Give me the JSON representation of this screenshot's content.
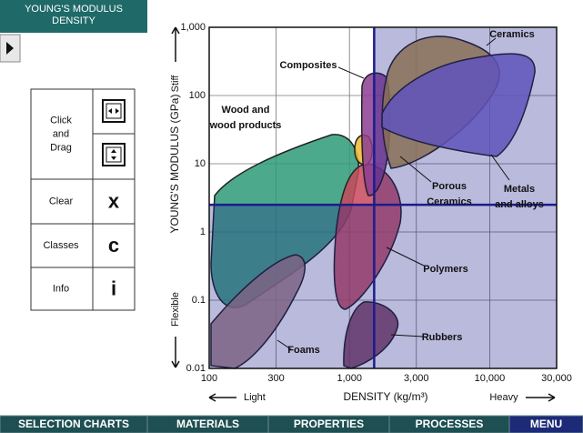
{
  "header": {
    "title": [
      "YOUNG'S MODULUS",
      "DENSITY"
    ]
  },
  "tools": [
    {
      "label": [
        "Click",
        "and",
        "Drag"
      ]
    },
    {
      "label": [
        "Clear"
      ],
      "icon": "x"
    },
    {
      "label": [
        "Classes"
      ],
      "icon": "c"
    },
    {
      "label": [
        "Info"
      ],
      "icon": "i"
    }
  ],
  "chart_data": {
    "type": "selection-chart",
    "x_label": "DENSITY (kg/m³)",
    "y_label": "YOUNG'S MODULUS (GPa)",
    "x_low": "Light",
    "x_high": "Heavy",
    "y_low": "Flexible",
    "y_high": "Stiff",
    "xlim": [
      100,
      30000
    ],
    "ylim": [
      0.01,
      1000
    ],
    "log_x": true,
    "log_y": true,
    "grid": true,
    "xticks": [
      100,
      300,
      {
        "value": 1000,
        "label": "1,000"
      },
      {
        "value": 3000,
        "label": "3,000"
      },
      {
        "value": 10000,
        "label": "10,000"
      },
      {
        "value": 30000,
        "label": "30,000"
      }
    ],
    "yticks": [
      0.01,
      0.1,
      1,
      10,
      100,
      {
        "value": 1000,
        "label": "1,000"
      }
    ],
    "selection": {
      "x": 1500,
      "y": 2.5,
      "color": "#1c1c8c"
    },
    "regions": [
      {
        "label": [
          "Wood and",
          "wood products"
        ],
        "color": "#2e9a78"
      },
      {
        "label": [
          "Foams"
        ],
        "color": "#a88282"
      },
      {
        "label": [
          "Polymers"
        ],
        "color": "#c8485c"
      },
      {
        "label": [
          "Rubbers"
        ],
        "color": "#80405a"
      },
      {
        "label": [
          "Porous",
          "Ceramics"
        ],
        "color": "#f0b830"
      },
      {
        "label": [
          "Composites"
        ],
        "color": "#8c3c90"
      },
      {
        "label": [
          "Ceramics"
        ],
        "color": "#b89440"
      },
      {
        "label": [
          "Metals",
          "and alloys"
        ],
        "color": "#7c6cd0"
      }
    ]
  },
  "nav": [
    "SELECTION CHARTS",
    "MATERIALS",
    "PROPERTIES",
    "PROCESSES",
    "MENU"
  ]
}
